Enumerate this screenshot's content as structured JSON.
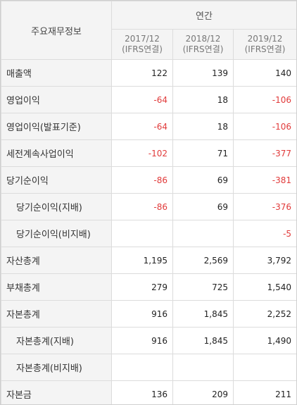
{
  "header": {
    "info_title": "주요재무정보",
    "annual_label": "연간",
    "periods": [
      {
        "year": "2017/12",
        "basis": "(IFRS연결)"
      },
      {
        "year": "2018/12",
        "basis": "(IFRS연결)"
      },
      {
        "year": "2019/12",
        "basis": "(IFRS연결)"
      }
    ]
  },
  "colors": {
    "negative": "#e13a3a",
    "header_bg": "#f4f4f4",
    "border": "#dcdcdc"
  },
  "rows": [
    {
      "label": "매출액",
      "sub": false,
      "values": [
        "122",
        "139",
        "140"
      ]
    },
    {
      "label": "영업이익",
      "sub": false,
      "values": [
        "-64",
        "18",
        "-106"
      ]
    },
    {
      "label": "영업이익(발표기준)",
      "sub": false,
      "values": [
        "-64",
        "18",
        "-106"
      ]
    },
    {
      "label": "세전계속사업이익",
      "sub": false,
      "values": [
        "-102",
        "71",
        "-377"
      ]
    },
    {
      "label": "당기순이익",
      "sub": false,
      "values": [
        "-86",
        "69",
        "-381"
      ]
    },
    {
      "label": "당기순이익(지배)",
      "sub": true,
      "values": [
        "-86",
        "69",
        "-376"
      ]
    },
    {
      "label": "당기순이익(비지배)",
      "sub": true,
      "values": [
        "",
        "",
        "-5"
      ]
    },
    {
      "label": "자산총계",
      "sub": false,
      "values": [
        "1,195",
        "2,569",
        "3,792"
      ]
    },
    {
      "label": "부채총계",
      "sub": false,
      "values": [
        "279",
        "725",
        "1,540"
      ]
    },
    {
      "label": "자본총계",
      "sub": false,
      "values": [
        "916",
        "1,845",
        "2,252"
      ]
    },
    {
      "label": "자본총계(지배)",
      "sub": true,
      "values": [
        "916",
        "1,845",
        "1,490"
      ]
    },
    {
      "label": "자본총계(비지배)",
      "sub": true,
      "values": [
        "",
        "",
        ""
      ]
    },
    {
      "label": "자본금",
      "sub": false,
      "values": [
        "136",
        "209",
        "211"
      ]
    }
  ]
}
